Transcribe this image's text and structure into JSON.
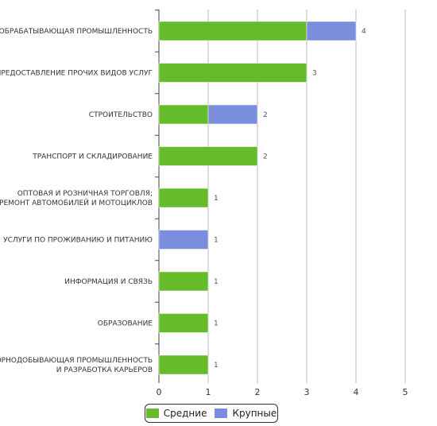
{
  "chart_data": {
    "type": "bar",
    "orientation": "horizontal",
    "stacked": true,
    "categories": [
      [
        "ОБРАБАТЫВАЮЩАЯ ПРОМЫШЛЕННОСТЬ"
      ],
      [
        "ПРЕДОСТАВЛЕНИЕ ПРОЧИХ ВИДОВ УСЛУГ"
      ],
      [
        "СТРОИТЕЛЬСТВО"
      ],
      [
        "ТРАНСПОРТ И СКЛАДИРОВАНИЕ"
      ],
      [
        "ОПТОВАЯ И РОЗНИЧНАЯ ТОРГОВЛЯ;",
        "РЕМОНТ АВТОМОБИЛЕЙ И МОТОЦИКЛОВ"
      ],
      [
        "УСЛУГИ ПО ПРОЖИВАНИЮ И ПИТАНИЮ"
      ],
      [
        "ИНФОРМАЦИЯ И СВЯЗЬ"
      ],
      [
        "ОБРАЗОВАНИЕ"
      ],
      [
        "ГОРНОДОБЫВАЮЩАЯ ПРОМЫШЛЕННОСТЬ",
        "И РАЗРАБОТКА КАРЬЕРОВ"
      ]
    ],
    "series": [
      {
        "name": "Средние",
        "color": "#66bb2a",
        "values": [
          3,
          3,
          1,
          2,
          1,
          0,
          1,
          1,
          1
        ]
      },
      {
        "name": "Крупные",
        "color": "#7b8ddd",
        "values": [
          1,
          0,
          1,
          0,
          0,
          1,
          0,
          0,
          0
        ]
      }
    ],
    "totals": [
      "4",
      "3",
      "2",
      "2",
      "1",
      "1",
      "1",
      "1",
      "1"
    ],
    "xlim": [
      0,
      5
    ],
    "xticks": [
      "0",
      "1",
      "2",
      "3",
      "4",
      "5"
    ],
    "grid": true,
    "legend_position": "bottom"
  }
}
